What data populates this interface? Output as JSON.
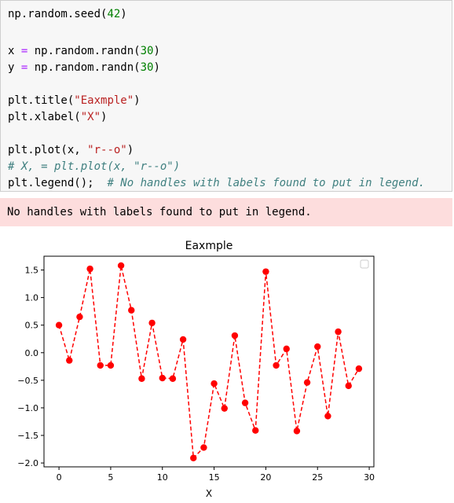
{
  "code_cell": {
    "line_1": {
      "pre": "np.random.seed(",
      "num": "42",
      "post": ")"
    },
    "line_2": {
      "pre": "x ",
      "op": "=",
      "mid": " np.random.randn(",
      "num": "30",
      "post": ")"
    },
    "line_3": {
      "pre": "y ",
      "op": "=",
      "mid": " np.random.randn(",
      "num": "30",
      "post": ")"
    },
    "line_4": {
      "pre": "plt.title(",
      "str": "\"Eaxmple\"",
      "post": ")"
    },
    "line_5": {
      "pre": "plt.xlabel(",
      "str": "\"X\"",
      "post": ")"
    },
    "line_6": {
      "pre": "plt.plot(x, ",
      "str": "\"r--o\"",
      "post": ")"
    },
    "line_7": {
      "cmt": "# X, = plt.plot(x, \"r--o\")"
    },
    "line_8": {
      "pre": "plt.legend();  ",
      "cmt": "# No handles with labels found to put in legend."
    }
  },
  "stderr": {
    "message": "No handles with labels found to put in legend."
  },
  "chart_data": {
    "type": "line",
    "title": "Eaxmple",
    "xlabel": "X",
    "ylabel": "",
    "xlim": [
      -1.45,
      30.45
    ],
    "ylim": [
      -2.07,
      1.75
    ],
    "x_ticks": [
      0,
      5,
      10,
      15,
      20,
      25,
      30
    ],
    "y_ticks": [
      -2.0,
      -1.5,
      -1.0,
      -0.5,
      0.0,
      0.5,
      1.0,
      1.5
    ],
    "y_tick_labels": [
      "−2.0",
      "−1.5",
      "−1.0",
      "−0.5",
      "0.0",
      "0.5",
      "1.0",
      "1.5"
    ],
    "legend": "empty box, top-right",
    "grid": false,
    "series": [
      {
        "style": "r--o",
        "color": "#ff0000",
        "x": [
          0,
          1,
          2,
          3,
          4,
          5,
          6,
          7,
          8,
          9,
          10,
          11,
          12,
          13,
          14,
          15,
          16,
          17,
          18,
          19,
          20,
          21,
          22,
          23,
          24,
          25,
          26,
          27,
          28,
          29
        ],
        "values": [
          0.5,
          -0.14,
          0.65,
          1.52,
          -0.23,
          -0.23,
          1.58,
          0.77,
          -0.47,
          0.54,
          -0.46,
          -0.47,
          0.24,
          -1.91,
          -1.72,
          -0.56,
          -1.01,
          0.31,
          -0.91,
          -1.41,
          1.47,
          -0.23,
          0.07,
          -1.42,
          -0.54,
          0.11,
          -1.15,
          0.38,
          -0.6,
          -0.29
        ]
      }
    ]
  }
}
